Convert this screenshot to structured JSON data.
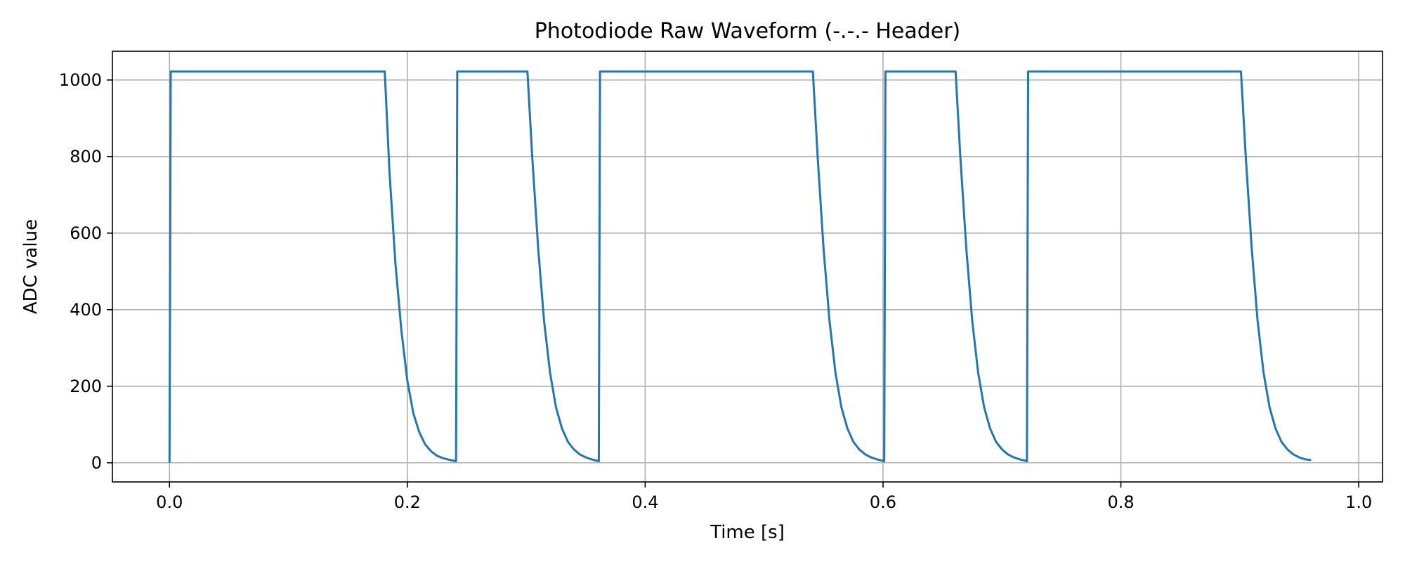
{
  "chart_data": {
    "type": "line",
    "title": "Photodiode Raw Waveform (-.-.- Header)",
    "xlabel": "Time [s]",
    "ylabel": "ADC value",
    "xlim": [
      -0.048,
      1.02
    ],
    "ylim": [
      -50,
      1075
    ],
    "xticks": [
      0.0,
      0.2,
      0.4,
      0.6,
      0.8,
      1.0
    ],
    "xtick_labels": [
      "0.0",
      "0.2",
      "0.4",
      "0.6",
      "0.8",
      "1.0"
    ],
    "yticks": [
      0,
      200,
      400,
      600,
      800,
      1000
    ],
    "ytick_labels": [
      "0",
      "200",
      "400",
      "600",
      "800",
      "1000"
    ],
    "grid": true,
    "series": [
      {
        "color": "#1f77b4",
        "x": [
          0.0,
          0.001,
          0.181,
          0.185,
          0.19,
          0.195,
          0.2,
          0.205,
          0.21,
          0.215,
          0.22,
          0.225,
          0.23,
          0.235,
          0.241,
          0.242,
          0.301,
          0.305,
          0.31,
          0.315,
          0.32,
          0.325,
          0.33,
          0.335,
          0.34,
          0.345,
          0.35,
          0.355,
          0.36,
          0.361,
          0.362,
          0.541,
          0.545,
          0.55,
          0.555,
          0.56,
          0.565,
          0.57,
          0.575,
          0.58,
          0.585,
          0.59,
          0.595,
          0.6,
          0.601,
          0.602,
          0.661,
          0.665,
          0.67,
          0.675,
          0.68,
          0.685,
          0.69,
          0.695,
          0.7,
          0.705,
          0.71,
          0.715,
          0.72,
          0.721,
          0.722,
          0.901,
          0.905,
          0.91,
          0.915,
          0.92,
          0.925,
          0.93,
          0.935,
          0.94,
          0.945,
          0.95,
          0.955,
          0.96
        ],
        "y": [
          0,
          1022,
          1022,
          760,
          520,
          345,
          215,
          130,
          80,
          48,
          30,
          18,
          12,
          8,
          4,
          1022,
          1022,
          800,
          560,
          370,
          235,
          145,
          90,
          55,
          35,
          22,
          14,
          9,
          5,
          4,
          1022,
          1022,
          800,
          560,
          370,
          235,
          145,
          90,
          55,
          35,
          22,
          14,
          9,
          5,
          4,
          1022,
          1022,
          800,
          560,
          370,
          235,
          145,
          90,
          55,
          35,
          22,
          14,
          9,
          5,
          4,
          1022,
          1022,
          800,
          560,
          370,
          235,
          145,
          90,
          55,
          35,
          22,
          14,
          9,
          7
        ]
      }
    ]
  }
}
